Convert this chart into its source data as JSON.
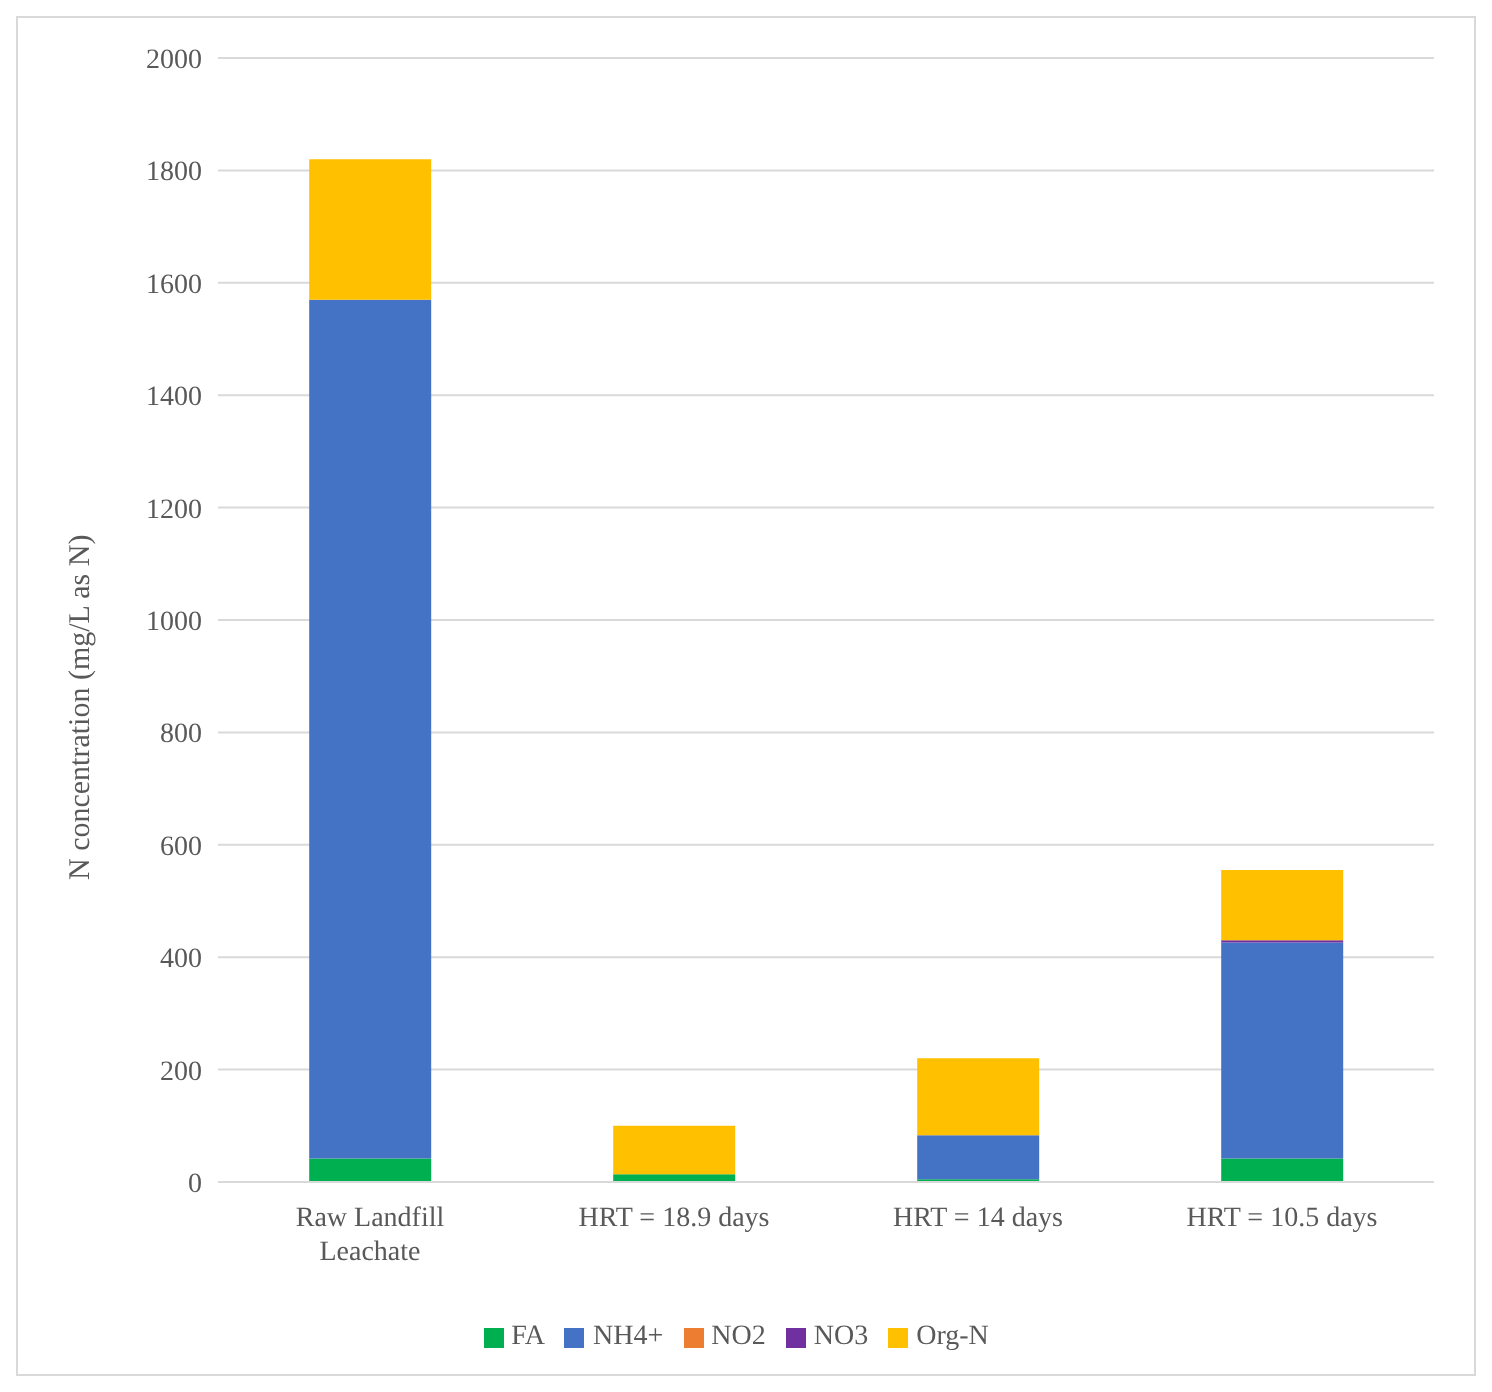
{
  "chart_data": {
    "type": "bar",
    "stacked": true,
    "ylabel": "N concentration (mg/L  as N)",
    "categories": [
      "Raw Landfill Leachate",
      "HRT = 18.9 days",
      "HRT = 14 days",
      "HRT = 10.5 days"
    ],
    "series": [
      {
        "name": "FA",
        "color": "#00b050",
        "values": [
          42,
          14,
          5,
          42
        ]
      },
      {
        "name": "NH4+",
        "color": "#4472c4",
        "values": [
          1528,
          0,
          78,
          384
        ]
      },
      {
        "name": "NO2",
        "color": "#ed7d31",
        "values": [
          0,
          0,
          0,
          0
        ]
      },
      {
        "name": "NO3",
        "color": "#7030a0",
        "values": [
          0,
          0,
          0,
          4
        ]
      },
      {
        "name": "Org-N",
        "color": "#ffc000",
        "values": [
          250,
          86,
          137,
          125
        ]
      }
    ],
    "ylim": [
      0,
      2000
    ],
    "yticks": [
      0,
      200,
      400,
      600,
      800,
      1000,
      1200,
      1400,
      1600,
      1800,
      2000
    ],
    "grid": "y",
    "legend": "bottom"
  }
}
